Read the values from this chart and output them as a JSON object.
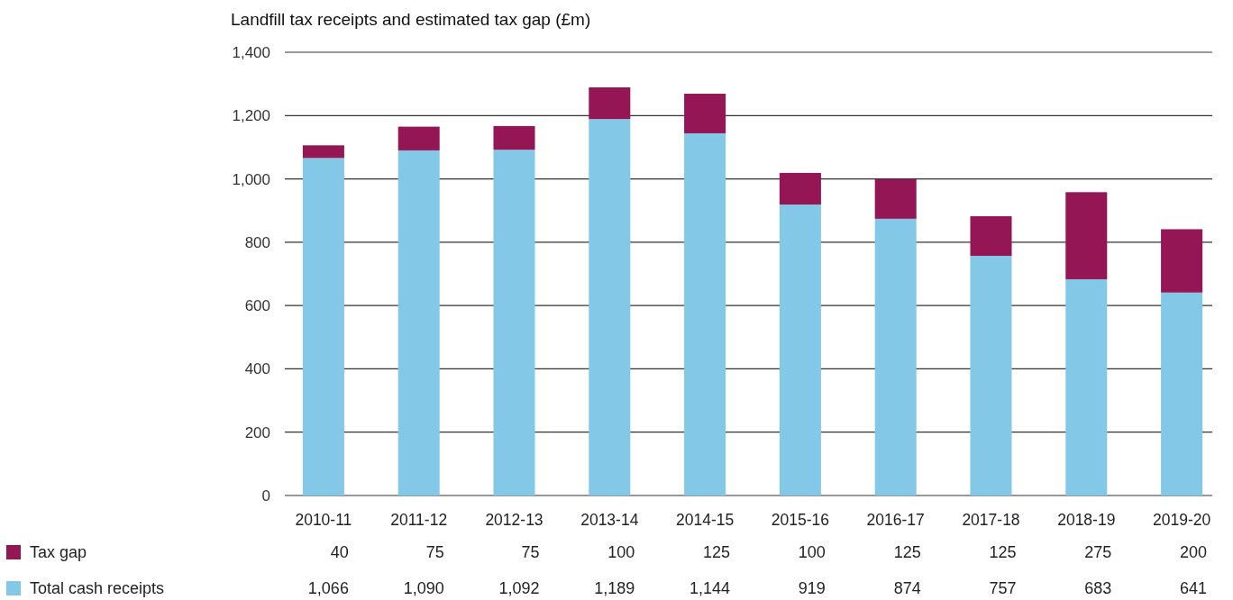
{
  "chart_data": {
    "type": "bar",
    "title": "Landfill tax receipts and estimated tax gap (£m)",
    "categories": [
      "2010-11",
      "2011-12",
      "2012-13",
      "2013-14",
      "2014-15",
      "2015-16",
      "2016-17",
      "2017-18",
      "2018-19",
      "2019-20"
    ],
    "series": [
      {
        "name": "Total cash receipts",
        "color": "#84c8e8",
        "values": [
          1066,
          1090,
          1092,
          1189,
          1144,
          919,
          874,
          757,
          683,
          641
        ],
        "value_labels": [
          "1,066",
          "1,090",
          "1,092",
          "1,189",
          "1,144",
          "919",
          "874",
          "757",
          "683",
          "641"
        ]
      },
      {
        "name": "Tax gap",
        "color": "#951655",
        "values": [
          40,
          75,
          75,
          100,
          125,
          100,
          125,
          125,
          275,
          200
        ],
        "value_labels": [
          "40",
          "75",
          "75",
          "100",
          "125",
          "100",
          "125",
          "125",
          "275",
          "200"
        ]
      }
    ],
    "stacked": true,
    "ylim": [
      0,
      1400
    ],
    "yticks": [
      0,
      {
        "value": 200,
        "label": "200"
      },
      400,
      600,
      800,
      {
        "value": 1000,
        "label": "1,000"
      },
      {
        "value": 1200,
        "label": "1,200"
      },
      {
        "value": 1400,
        "label": "1,400"
      }
    ],
    "grid": "y",
    "legend": "bottom left"
  }
}
